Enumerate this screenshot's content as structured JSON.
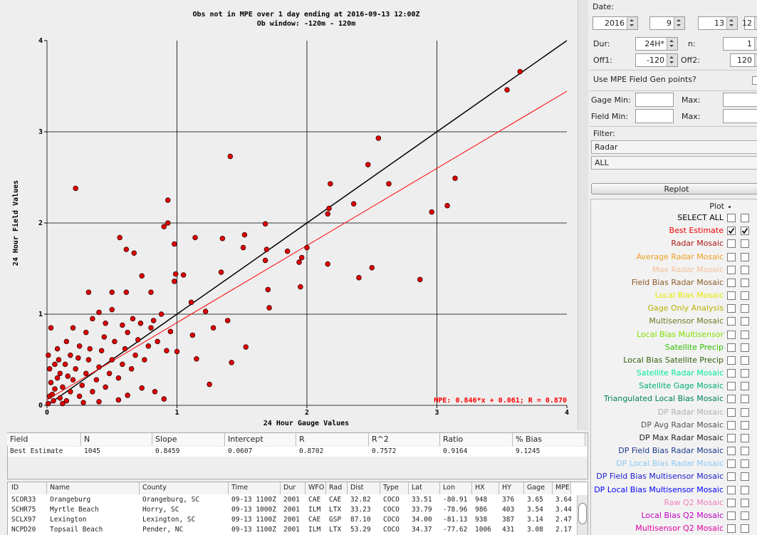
{
  "chart_data": {
    "type": "scatter",
    "title": "Obs not in MPE over 1 day ending at 2016-09-13 12:00Z",
    "subtitle": "Ob window: -120m - 120m",
    "xlabel": "24 Hour Gauge Values",
    "ylabel": "24 Hour Field Values",
    "annotation": "MPE: 0.846*x + 0.061; R = 0.870",
    "fit_line": {
      "slope": 0.846,
      "intercept": 0.061,
      "color": "#ff0000"
    },
    "identity_line": {
      "color": "#000000"
    },
    "xlim": [
      0,
      4
    ],
    "ylim": [
      0,
      4
    ],
    "xticks": [
      0,
      1,
      2,
      3,
      4
    ],
    "yticks": [
      0,
      1,
      2,
      3,
      4
    ],
    "grid": true,
    "series": [
      {
        "name": "Best Estimate",
        "color": "#e00000",
        "x": [
          0.22,
          1.41,
          2.55,
          2.47,
          2.63,
          2.18,
          2.36,
          2.16,
          2.17,
          3.54,
          3.64,
          3.14,
          3.08,
          2.96,
          2.87,
          2.5,
          2.4,
          2.16,
          1.95,
          1.71,
          1.7,
          1.52,
          1.51,
          1.35,
          1.68,
          1.69,
          1.68,
          1.85,
          1.96,
          2.0,
          1.94,
          0.93,
          0.93,
          0.9,
          1.14,
          0.98,
          0.56,
          0.61,
          0.67,
          0.73,
          0.99,
          1.05,
          0.98,
          1.34,
          1.11,
          1.22,
          1.53,
          1.42,
          1.25,
          1.15,
          1.0,
          0.03,
          0.32,
          0.5,
          0.61,
          0.8,
          0.82,
          0.95,
          1.12,
          1.28,
          1.39,
          0.73,
          0.83,
          0.9,
          0.62,
          0.01,
          0.02,
          0.03,
          0.02,
          0.01,
          0.05,
          0.06,
          0.08,
          0.04,
          0.1,
          0.12,
          0.1,
          0.14,
          0.15,
          0.18,
          0.2,
          0.22,
          0.25,
          0.27,
          0.3,
          0.32,
          0.35,
          0.38,
          0.4,
          0.42,
          0.45,
          0.48,
          0.5,
          0.52,
          0.55,
          0.58,
          0.6,
          0.62,
          0.65,
          0.68,
          0.7,
          0.72,
          0.75,
          0.78,
          0.8,
          0.18,
          0.25,
          0.3,
          0.35,
          0.4,
          0.45,
          0.5,
          0.15,
          0.08,
          0.2,
          0.12,
          0.28,
          0.4,
          0.55,
          0.06,
          0.09,
          0.16,
          0.24,
          0.33,
          0.44,
          0.58,
          0.66,
          0.85,
          0.88,
          0.92
        ],
        "y": [
          2.38,
          2.73,
          2.93,
          2.64,
          2.43,
          2.43,
          2.21,
          2.1,
          2.16,
          3.46,
          3.66,
          2.49,
          2.19,
          2.12,
          1.38,
          1.51,
          1.4,
          1.55,
          1.3,
          1.07,
          1.27,
          1.87,
          1.73,
          1.83,
          1.99,
          1.71,
          1.59,
          1.69,
          1.62,
          1.73,
          1.57,
          2.25,
          2.0,
          1.96,
          1.84,
          1.77,
          1.84,
          1.71,
          1.67,
          1.42,
          1.44,
          1.43,
          1.36,
          1.46,
          1.13,
          1.03,
          0.64,
          0.47,
          0.23,
          0.51,
          0.59,
          0.85,
          1.24,
          1.24,
          1.24,
          1.24,
          0.93,
          0.81,
          0.77,
          0.85,
          0.93,
          0.19,
          0.15,
          0.07,
          0.11,
          0.02,
          0.1,
          0.25,
          0.4,
          0.55,
          0.05,
          0.18,
          0.3,
          0.12,
          0.08,
          0.2,
          0.35,
          0.45,
          0.05,
          0.15,
          0.28,
          0.4,
          0.1,
          0.22,
          0.35,
          0.5,
          0.15,
          0.28,
          0.42,
          0.6,
          0.2,
          0.35,
          0.5,
          0.7,
          0.3,
          0.45,
          0.62,
          0.8,
          0.4,
          0.55,
          0.72,
          0.9,
          0.5,
          0.65,
          0.85,
          0.55,
          0.65,
          0.8,
          0.95,
          1.02,
          0.9,
          1.05,
          0.7,
          0.62,
          0.85,
          0.02,
          0.03,
          0.04,
          0.06,
          0.45,
          0.5,
          0.32,
          0.52,
          0.62,
          0.75,
          0.88,
          0.95,
          0.7,
          1.0,
          0.6
        ]
      }
    ]
  },
  "panel": {
    "date_label": "Date:",
    "date": [
      "2016",
      "9",
      "13",
      "12"
    ],
    "dur_label": "Dur:",
    "dur": "24H*",
    "n_label": "n:",
    "n": "1",
    "off1_label": "Off1:",
    "off1": "-120",
    "off2_label": "Off2:",
    "off2": "120",
    "use_points_label": "Use MPE Field Gen points?",
    "gage_min_label": "Gage Min:",
    "max_label": "Max:",
    "field_min_label": "Field Min:",
    "filter_label": "Filter:",
    "filter_options": [
      "Radar",
      "ALL"
    ],
    "replot": "Replot",
    "plot_header": "Plot",
    "plot_items": [
      {
        "name": "SELECT ALL",
        "color": "#000000",
        "checked": [
          false,
          false
        ]
      },
      {
        "name": "Best Estimate",
        "color": "#ee0000",
        "checked": [
          true,
          true
        ]
      },
      {
        "name": "Radar Mosaic",
        "color": "#b01818",
        "checked": [
          false,
          false
        ]
      },
      {
        "name": "Average Radar Mosaic",
        "color": "#f0a020",
        "checked": [
          false,
          false
        ]
      },
      {
        "name": "Max Radar Mosaic",
        "color": "#f5c09a",
        "checked": [
          false,
          false
        ]
      },
      {
        "name": "Field Bias Radar Mosaic",
        "color": "#8a5a28",
        "checked": [
          false,
          false
        ]
      },
      {
        "name": "Local Bias Mosaic",
        "color": "#e8e800",
        "checked": [
          false,
          false
        ]
      },
      {
        "name": "Gage Only Analysis",
        "color": "#b8b000",
        "checked": [
          false,
          false
        ]
      },
      {
        "name": "Multisensor Mosaic",
        "color": "#6b7a20",
        "checked": [
          false,
          false
        ]
      },
      {
        "name": "Local Bias Multisensor",
        "color": "#80e000",
        "checked": [
          false,
          false
        ]
      },
      {
        "name": "Satellite Precip",
        "color": "#30c000",
        "checked": [
          false,
          false
        ]
      },
      {
        "name": "Local Bias Satellite Precip",
        "color": "#306010",
        "checked": [
          false,
          false
        ]
      },
      {
        "name": "Satellite Radar Mosaic",
        "color": "#00e8a0",
        "checked": [
          false,
          false
        ]
      },
      {
        "name": "Satellite Gage Mosaic",
        "color": "#00b070",
        "checked": [
          false,
          false
        ]
      },
      {
        "name": "Triangulated Local Bias Mosaic",
        "color": "#008060",
        "checked": [
          false,
          false
        ]
      },
      {
        "name": "DP Radar Mosaic",
        "color": "#b0b0b0",
        "checked": [
          false,
          false
        ]
      },
      {
        "name": "DP Avg Radar Mosaic",
        "color": "#555555",
        "checked": [
          false,
          false
        ]
      },
      {
        "name": "DP Max Radar Mosaic",
        "color": "#222222",
        "checked": [
          false,
          false
        ]
      },
      {
        "name": "DP Field Bias Radar Mosaic",
        "color": "#1a3a8a",
        "checked": [
          false,
          false
        ]
      },
      {
        "name": "DP Local Bias Radar Mosaic",
        "color": "#8ec8f0",
        "checked": [
          false,
          false
        ]
      },
      {
        "name": "DP Field Bias Multisensor Mosaic",
        "color": "#2020d0",
        "checked": [
          false,
          false
        ]
      },
      {
        "name": "DP Local Bias Multisensor Mosaic",
        "color": "#0000ff",
        "checked": [
          false,
          false
        ]
      },
      {
        "name": "Raw Q2 Mosaic",
        "color": "#f080c0",
        "checked": [
          false,
          false
        ]
      },
      {
        "name": "Local Bias Q2 Mosaic",
        "color": "#c000c0",
        "checked": [
          false,
          false
        ]
      },
      {
        "name": "Multisensor Q2 Mosaic",
        "color": "#e000a0",
        "checked": [
          false,
          false
        ]
      }
    ]
  },
  "stats_table": {
    "headers": [
      "Field",
      "N",
      "Slope",
      "Intercept",
      "R",
      "R^2",
      "Ratio",
      "% Bias"
    ],
    "rows": [
      [
        "Best Estimate",
        "1045",
        "0.8459",
        "0.0607",
        "0.8702",
        "0.7572",
        "0.9164",
        "9.1245"
      ]
    ]
  },
  "obs_table": {
    "headers": [
      "ID",
      "Name",
      "County",
      "Time",
      "Dur",
      "WFO",
      "Rad",
      "Dist",
      "Type",
      "Lat",
      "Lon",
      "HX",
      "HY",
      "Gage",
      "MPE"
    ],
    "rows": [
      [
        "SCOR33",
        "Orangeburg",
        "Orangeburg, SC",
        "09-13 1100Z",
        "2001",
        "CAE",
        "CAE",
        "32.82",
        "COCO",
        "33.51",
        "-80.91",
        "948",
        "376",
        "3.65",
        "3.64"
      ],
      [
        "SCHR75",
        "Myrtle Beach",
        "Horry, SC",
        "09-13 1000Z",
        "2001",
        "ILM",
        "LTX",
        "33.23",
        "COCO",
        "33.79",
        "-78.96",
        "986",
        "403",
        "3.54",
        "3.44"
      ],
      [
        "SCLX97",
        "Lexington",
        "Lexington, SC",
        "09-13 1100Z",
        "2001",
        "CAE",
        "GSP",
        "87.10",
        "COCO",
        "34.00",
        "-81.13",
        "938",
        "387",
        "3.14",
        "2.47"
      ],
      [
        "NCPD20",
        "Topsail Beach",
        "Pender, NC",
        "09-13 1100Z",
        "2001",
        "ILM",
        "LTX",
        "53.29",
        "COCO",
        "34.37",
        "-77.62",
        "1006",
        "431",
        "3.08",
        "2.17"
      ]
    ]
  }
}
